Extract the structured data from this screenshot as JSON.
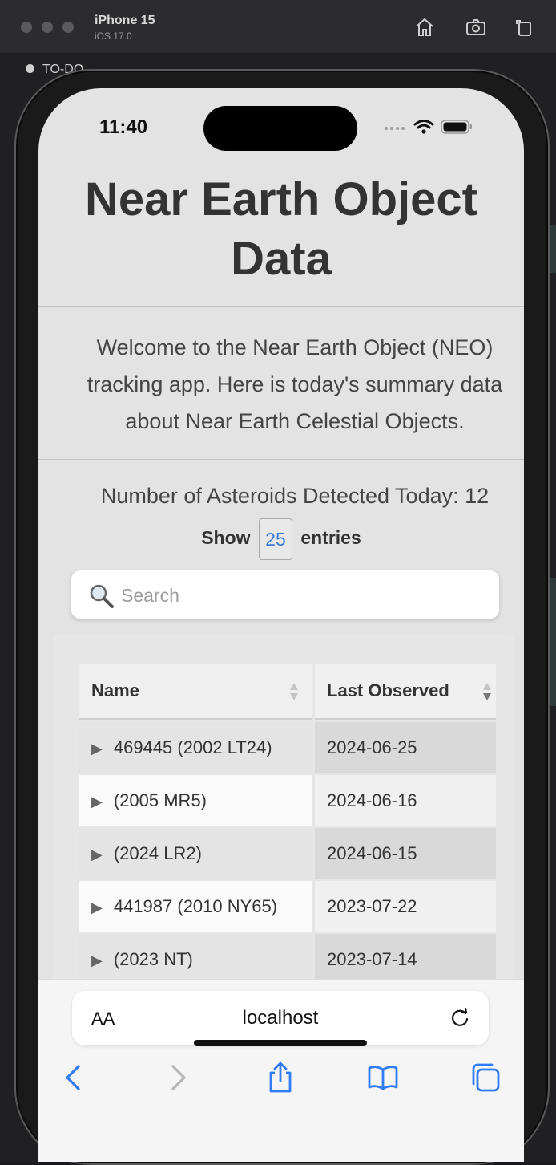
{
  "simulator": {
    "device": "iPhone 15",
    "os": "iOS 17.0",
    "behind_item": "TO-DO"
  },
  "status_bar": {
    "time": "11:40"
  },
  "page": {
    "title": "Near Earth Object Data",
    "intro": "Welcome to the Near Earth Object (NEO) tracking app. Here is today's summary data about Near Earth Celestial Objects.",
    "count_text": "Number of Asteroids Detected Today: 12",
    "show_label": "Show",
    "show_value": "25",
    "entries_label": "entries",
    "search_placeholder": "Search"
  },
  "table": {
    "headers": [
      "Name",
      "Last Observed"
    ],
    "rows": [
      {
        "name": "469445 (2002 LT24)",
        "last_observed": "2024-06-25"
      },
      {
        "name": "(2005 MR5)",
        "last_observed": "2024-06-16"
      },
      {
        "name": "(2024 LR2)",
        "last_observed": "2024-06-15"
      },
      {
        "name": "441987 (2010 NY65)",
        "last_observed": "2023-07-22"
      },
      {
        "name": "(2023 NT)",
        "last_observed": "2023-07-14"
      }
    ]
  },
  "browser": {
    "aa_label": "AA",
    "url": "localhost"
  },
  "colors": {
    "accent": "#3a7bd5",
    "page_bg": "#e3e3e3"
  }
}
